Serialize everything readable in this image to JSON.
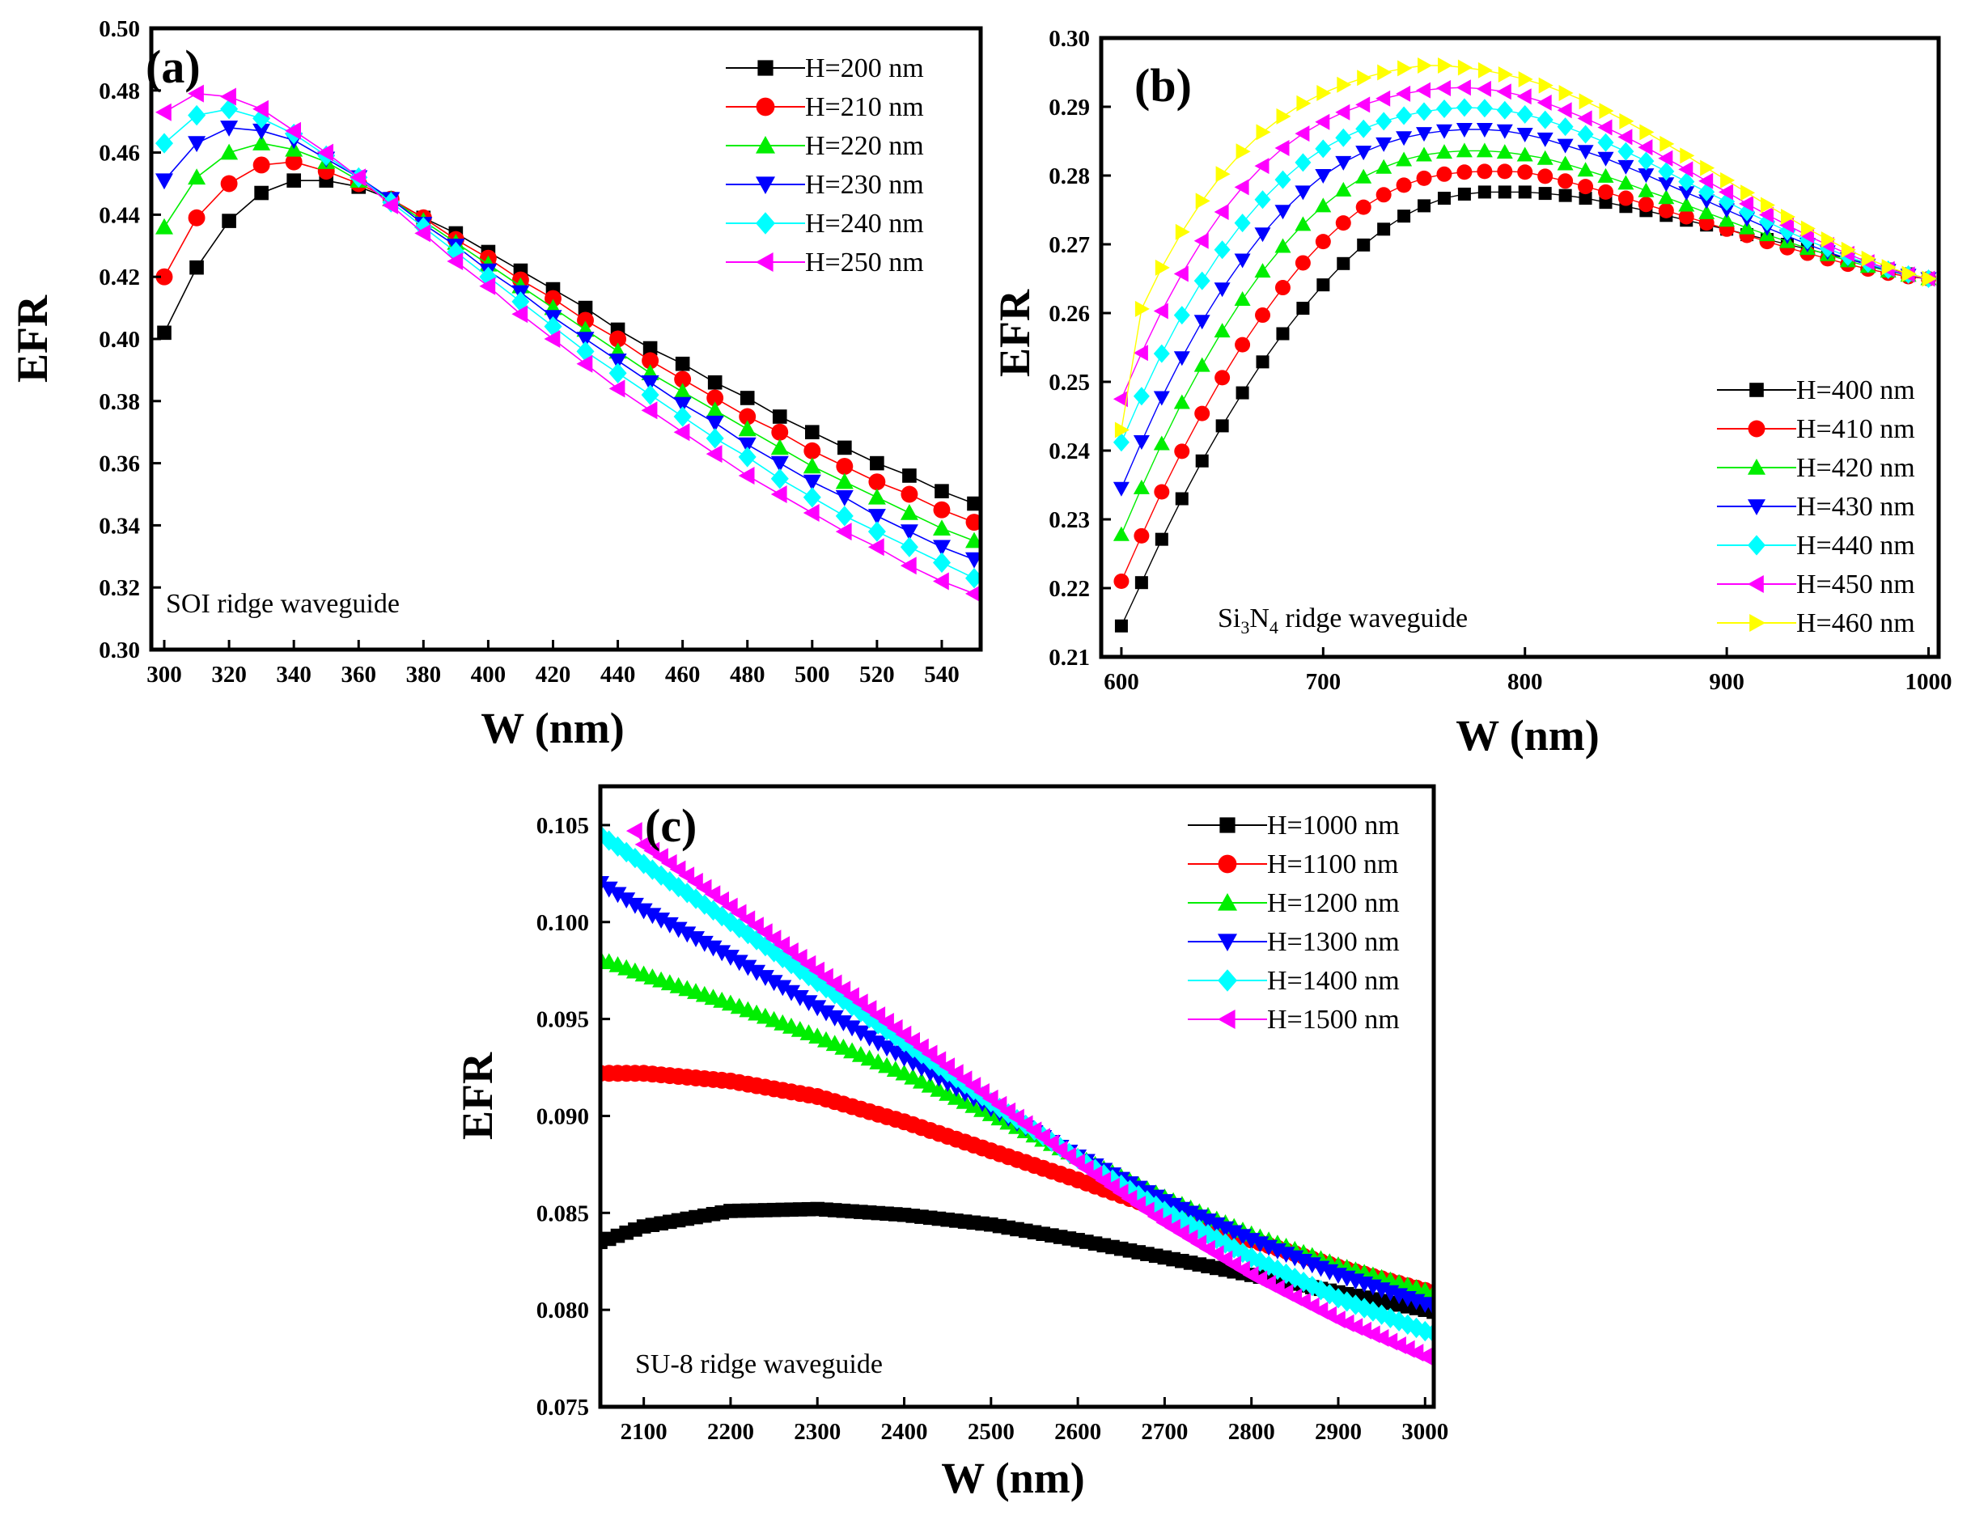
{
  "chart_data": [
    {
      "type": "line",
      "panel_label": "(a)",
      "annotation": "SOI ridge waveguide",
      "xlabel": "W (nm)",
      "ylabel": "EFR",
      "xlim": [
        296,
        552
      ],
      "ylim": [
        0.3,
        0.5
      ],
      "xticks": [
        300,
        320,
        340,
        360,
        380,
        400,
        420,
        440,
        460,
        480,
        500,
        520,
        540
      ],
      "yticks": [
        0.3,
        0.32,
        0.34,
        0.36,
        0.38,
        0.4,
        0.42,
        0.44,
        0.46,
        0.48,
        0.5
      ],
      "ytick_labels": [
        "0.30",
        "0.32",
        "0.34",
        "0.36",
        "0.38",
        "0.40",
        "0.42",
        "0.44",
        "0.46",
        "0.48",
        "0.50"
      ],
      "legend_position": "top-right",
      "x": [
        300,
        310,
        320,
        330,
        340,
        350,
        360,
        370,
        380,
        390,
        400,
        410,
        420,
        430,
        440,
        450,
        460,
        470,
        480,
        490,
        500,
        510,
        520,
        530,
        540,
        550
      ],
      "series": [
        {
          "name": "H=200 nm",
          "color": "#000000",
          "marker": "square",
          "values": [
            0.402,
            0.423,
            0.438,
            0.447,
            0.451,
            0.451,
            0.449,
            0.445,
            0.439,
            0.434,
            0.428,
            0.422,
            0.416,
            0.41,
            0.403,
            0.397,
            0.392,
            0.386,
            0.381,
            0.375,
            0.37,
            0.365,
            0.36,
            0.356,
            0.351,
            0.347
          ]
        },
        {
          "name": "H=210 nm",
          "color": "#ff0000",
          "marker": "circle",
          "values": [
            0.42,
            0.439,
            0.45,
            0.456,
            0.457,
            0.454,
            0.45,
            0.445,
            0.439,
            0.432,
            0.426,
            0.419,
            0.413,
            0.406,
            0.4,
            0.393,
            0.387,
            0.381,
            0.375,
            0.37,
            0.364,
            0.359,
            0.354,
            0.35,
            0.345,
            0.341
          ]
        },
        {
          "name": "H=220 nm",
          "color": "#00ee00",
          "marker": "triangle-up",
          "values": [
            0.436,
            0.452,
            0.46,
            0.463,
            0.461,
            0.457,
            0.451,
            0.445,
            0.438,
            0.431,
            0.424,
            0.417,
            0.41,
            0.403,
            0.396,
            0.389,
            0.383,
            0.377,
            0.371,
            0.365,
            0.359,
            0.354,
            0.349,
            0.344,
            0.339,
            0.335
          ]
        },
        {
          "name": "H=230 nm",
          "color": "#0000ff",
          "marker": "triangle-down",
          "values": [
            0.451,
            0.463,
            0.468,
            0.467,
            0.464,
            0.458,
            0.452,
            0.445,
            0.437,
            0.43,
            0.422,
            0.415,
            0.407,
            0.4,
            0.393,
            0.386,
            0.379,
            0.373,
            0.366,
            0.36,
            0.354,
            0.349,
            0.343,
            0.338,
            0.333,
            0.329
          ]
        },
        {
          "name": "H=240 nm",
          "color": "#00ffff",
          "marker": "diamond",
          "values": [
            0.463,
            0.472,
            0.474,
            0.471,
            0.466,
            0.459,
            0.452,
            0.444,
            0.436,
            0.428,
            0.42,
            0.412,
            0.404,
            0.396,
            0.389,
            0.382,
            0.375,
            0.368,
            0.362,
            0.355,
            0.349,
            0.343,
            0.338,
            0.333,
            0.328,
            0.323
          ]
        },
        {
          "name": "H=250 nm",
          "color": "#ff00ff",
          "marker": "triangle-left",
          "values": [
            0.473,
            0.479,
            0.478,
            0.474,
            0.467,
            0.46,
            0.452,
            0.443,
            0.434,
            0.425,
            0.417,
            0.408,
            0.4,
            0.392,
            0.384,
            0.377,
            0.37,
            0.363,
            0.356,
            0.35,
            0.344,
            0.338,
            0.333,
            0.327,
            0.322,
            0.318
          ]
        }
      ]
    },
    {
      "type": "line",
      "panel_label": "(b)",
      "annotation_parts": [
        "Si",
        "3",
        "N",
        "4",
        " ridge waveguide"
      ],
      "xlabel": "W (nm)",
      "ylabel": "EFR",
      "xlim": [
        590,
        1005
      ],
      "ylim": [
        0.21,
        0.3
      ],
      "xticks": [
        600,
        700,
        800,
        900,
        1000
      ],
      "yticks": [
        0.21,
        0.22,
        0.23,
        0.24,
        0.25,
        0.26,
        0.27,
        0.28,
        0.29,
        0.3
      ],
      "ytick_labels": [
        "0.21",
        "0.22",
        "0.23",
        "0.24",
        "0.25",
        "0.26",
        "0.27",
        "0.28",
        "0.29",
        "0.30"
      ],
      "legend_position": "bottom-right",
      "x_start": 600,
      "x_step": 10,
      "series": [
        {
          "name": "H=400 nm",
          "color": "#000000",
          "marker": "square",
          "values": [
            0.2145,
            0.2208,
            0.2271,
            0.233,
            0.2385,
            0.2436,
            0.2484,
            0.2529,
            0.257,
            0.2607,
            0.2641,
            0.2672,
            0.2699,
            0.2722,
            0.2741,
            0.2756,
            0.2767,
            0.2773,
            0.2776,
            0.2776,
            0.2776,
            0.2774,
            0.2771,
            0.2767,
            0.2761,
            0.2755,
            0.2749,
            0.2742,
            0.2735,
            0.2728,
            0.2722,
            0.2714,
            0.2707,
            0.27,
            0.2693,
            0.2686,
            0.2679,
            0.2671,
            0.2664,
            0.2657,
            0.265
          ]
        },
        {
          "name": "H=410 nm",
          "color": "#ff0000",
          "marker": "circle",
          "values": [
            0.221,
            0.2276,
            0.234,
            0.2399,
            0.2454,
            0.2506,
            0.2554,
            0.2597,
            0.2637,
            0.2673,
            0.2704,
            0.2731,
            0.2754,
            0.2772,
            0.2786,
            0.2796,
            0.2802,
            0.2805,
            0.2806,
            0.2806,
            0.2805,
            0.2799,
            0.2792,
            0.2784,
            0.2776,
            0.2767,
            0.2758,
            0.2749,
            0.274,
            0.2731,
            0.2722,
            0.2713,
            0.2704,
            0.2695,
            0.2687,
            0.2679,
            0.2671,
            0.2664,
            0.2658,
            0.2653,
            0.265
          ]
        },
        {
          "name": "H=420 nm",
          "color": "#00ee00",
          "marker": "triangle-up",
          "values": [
            0.2278,
            0.2346,
            0.241,
            0.247,
            0.2524,
            0.2574,
            0.262,
            0.2661,
            0.2697,
            0.2729,
            0.2756,
            0.2779,
            0.2798,
            0.2812,
            0.2823,
            0.283,
            0.2834,
            0.2836,
            0.2836,
            0.2834,
            0.283,
            0.2825,
            0.2817,
            0.2808,
            0.2799,
            0.2789,
            0.2778,
            0.2768,
            0.2757,
            0.2746,
            0.2735,
            0.2724,
            0.2714,
            0.2704,
            0.2694,
            0.2685,
            0.2676,
            0.2668,
            0.2661,
            0.2655,
            0.265
          ]
        },
        {
          "name": "H=430 nm",
          "color": "#0000ff",
          "marker": "triangle-down",
          "values": [
            0.2345,
            0.2413,
            0.2477,
            0.2535,
            0.2588,
            0.2635,
            0.2677,
            0.2715,
            0.2748,
            0.2776,
            0.28,
            0.2819,
            0.2834,
            0.2846,
            0.2855,
            0.2861,
            0.2865,
            0.2867,
            0.2867,
            0.2865,
            0.286,
            0.2853,
            0.2844,
            0.2835,
            0.2825,
            0.2813,
            0.2801,
            0.2788,
            0.2775,
            0.2763,
            0.275,
            0.2737,
            0.2724,
            0.2712,
            0.27,
            0.2689,
            0.2679,
            0.267,
            0.2662,
            0.2655,
            0.265
          ]
        },
        {
          "name": "H=440 nm",
          "color": "#00ffff",
          "marker": "diamond",
          "values": [
            0.2412,
            0.2479,
            0.2541,
            0.2597,
            0.2647,
            0.2692,
            0.2731,
            0.2765,
            0.2794,
            0.2819,
            0.2839,
            0.2855,
            0.2868,
            0.2879,
            0.2887,
            0.2893,
            0.2897,
            0.2899,
            0.2898,
            0.2895,
            0.2889,
            0.2881,
            0.2871,
            0.286,
            0.2848,
            0.2835,
            0.2821,
            0.2806,
            0.2791,
            0.2776,
            0.2762,
            0.2747,
            0.2733,
            0.2719,
            0.2706,
            0.2694,
            0.2682,
            0.2672,
            0.2663,
            0.2656,
            0.265
          ]
        },
        {
          "name": "H=450 nm",
          "color": "#ff00ff",
          "marker": "triangle-left",
          "values": [
            0.2475,
            0.2542,
            0.2603,
            0.2657,
            0.2705,
            0.2747,
            0.2783,
            0.2814,
            0.284,
            0.2861,
            0.2878,
            0.2892,
            0.2903,
            0.2912,
            0.2919,
            0.2924,
            0.2927,
            0.2928,
            0.2926,
            0.2922,
            0.2915,
            0.2906,
            0.2895,
            0.2883,
            0.287,
            0.2856,
            0.2841,
            0.2825,
            0.2809,
            0.2792,
            0.2776,
            0.2759,
            0.2743,
            0.2728,
            0.2713,
            0.2699,
            0.2686,
            0.2674,
            0.2664,
            0.2656,
            0.265
          ]
        },
        {
          "name": "H=460 nm",
          "color": "#ffff00",
          "marker": "triangle-right",
          "values": [
            0.243,
            0.2606,
            0.2666,
            0.2718,
            0.2763,
            0.2802,
            0.2835,
            0.2863,
            0.2886,
            0.2905,
            0.292,
            0.2932,
            0.2942,
            0.295,
            0.2956,
            0.296,
            0.296,
            0.2957,
            0.2953,
            0.2947,
            0.294,
            0.2931,
            0.292,
            0.2908,
            0.2894,
            0.2879,
            0.2863,
            0.2846,
            0.2829,
            0.2811,
            0.2793,
            0.2775,
            0.2757,
            0.274,
            0.2723,
            0.2707,
            0.2692,
            0.2679,
            0.2667,
            0.2657,
            0.265
          ]
        }
      ]
    },
    {
      "type": "line",
      "panel_label": "(c)",
      "annotation": "SU-8 ridge waveguide",
      "xlabel": "W (nm)",
      "ylabel": "EFR",
      "xlim": [
        2050,
        3010
      ],
      "ylim": [
        0.075,
        0.107
      ],
      "xticks": [
        2100,
        2200,
        2300,
        2400,
        2500,
        2600,
        2700,
        2800,
        2900,
        3000
      ],
      "yticks": [
        0.075,
        0.08,
        0.085,
        0.09,
        0.095,
        0.1,
        0.105
      ],
      "ytick_labels": [
        "0.075",
        "0.080",
        "0.085",
        "0.090",
        "0.095",
        "0.100",
        "0.105"
      ],
      "legend_position": "top-right",
      "x_start": 2050,
      "x_end": 3010,
      "x_step": 10,
      "series": [
        {
          "name": "H=1000 nm",
          "color": "#000000",
          "marker": "square",
          "anchors_x": [
            2050,
            2100,
            2200,
            2300,
            2400,
            2500,
            2600,
            2700,
            2800,
            2900,
            3000,
            3010
          ],
          "anchors_y": [
            0.0835,
            0.0843,
            0.0851,
            0.0852,
            0.0849,
            0.0844,
            0.0836,
            0.0827,
            0.0818,
            0.0809,
            0.08,
            0.0799
          ]
        },
        {
          "name": "H=1100 nm",
          "color": "#ff0000",
          "marker": "circle",
          "anchors_x": [
            2050,
            2100,
            2200,
            2300,
            2400,
            2500,
            2600,
            2700,
            2800,
            2900,
            3000,
            3010
          ],
          "anchors_y": [
            0.0922,
            0.0922,
            0.0918,
            0.091,
            0.0897,
            0.0882,
            0.0867,
            0.0851,
            0.0836,
            0.0822,
            0.081,
            0.0809
          ]
        },
        {
          "name": "H=1200 nm",
          "color": "#00ee00",
          "marker": "triangle-up",
          "anchors_x": [
            2050,
            2100,
            2200,
            2300,
            2400,
            2500,
            2600,
            2700,
            2800,
            2900,
            3000,
            3010
          ],
          "anchors_y": [
            0.0981,
            0.0973,
            0.0958,
            0.0941,
            0.0922,
            0.0901,
            0.0879,
            0.0858,
            0.0839,
            0.0823,
            0.081,
            0.0809
          ]
        },
        {
          "name": "H=1300 nm",
          "color": "#0000ff",
          "marker": "triangle-down",
          "anchors_x": [
            2050,
            2100,
            2200,
            2300,
            2400,
            2500,
            2600,
            2700,
            2800,
            2900,
            3000,
            3010
          ],
          "anchors_y": [
            0.102,
            0.1006,
            0.0982,
            0.0956,
            0.093,
            0.0904,
            0.0879,
            0.0856,
            0.0836,
            0.0818,
            0.0803,
            0.0801
          ]
        },
        {
          "name": "H=1400 nm",
          "color": "#00ffff",
          "marker": "diamond",
          "anchors_x": [
            2050,
            2100,
            2200,
            2300,
            2400,
            2500,
            2600,
            2700,
            2800,
            2900,
            3000,
            3010
          ],
          "anchors_y": [
            0.1045,
            0.103,
            0.1,
            0.0969,
            0.0938,
            0.0907,
            0.0878,
            0.0851,
            0.0827,
            0.0806,
            0.0789,
            0.0788
          ]
        },
        {
          "name": "H=1500 nm",
          "color": "#ff00ff",
          "marker": "triangle-left",
          "anchors_x": [
            2090,
            2100,
            2200,
            2300,
            2400,
            2500,
            2600,
            2700,
            2800,
            2900,
            3000,
            3010
          ],
          "anchors_y": [
            0.1047,
            0.104,
            0.1008,
            0.0975,
            0.0942,
            0.0909,
            0.0876,
            0.0845,
            0.0818,
            0.0795,
            0.0776,
            0.0774
          ]
        }
      ]
    }
  ]
}
